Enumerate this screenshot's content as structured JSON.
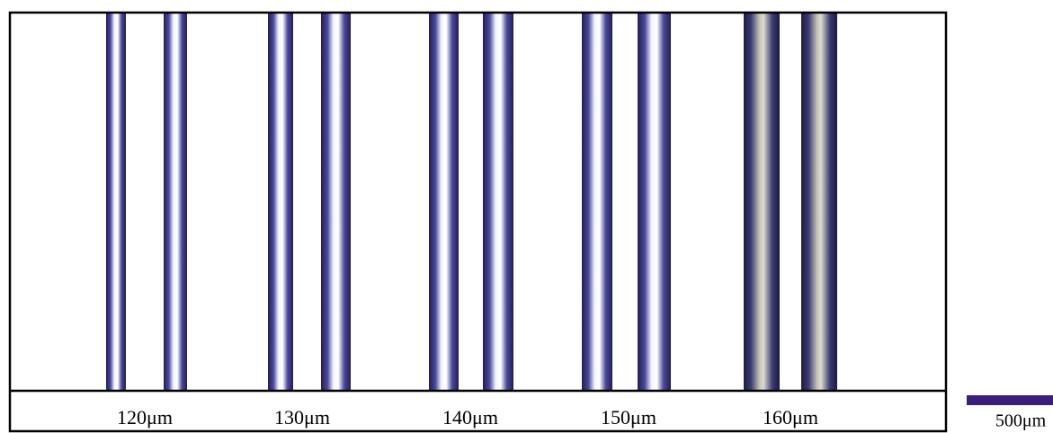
{
  "figure": {
    "labels": [
      "120μm",
      "130μm",
      "140μm",
      "150μm",
      "160μm"
    ],
    "scale_bar": "500μm"
  }
}
